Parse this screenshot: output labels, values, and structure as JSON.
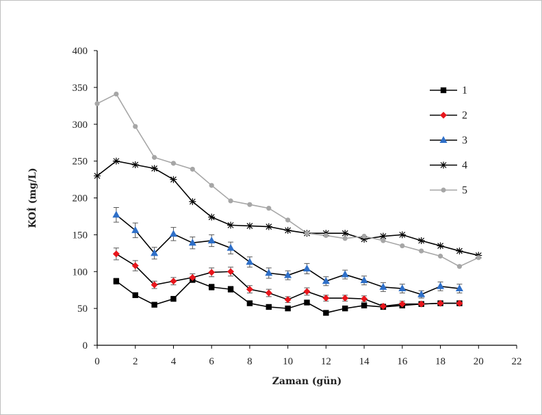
{
  "chart_data": {
    "type": "line",
    "title": "",
    "xlabel": "Zaman (gün)",
    "ylabel": "KOİ (mg/L)",
    "xlim": [
      0,
      22
    ],
    "ylim": [
      0,
      400
    ],
    "xticks": [
      0,
      2,
      4,
      6,
      8,
      10,
      12,
      14,
      16,
      18,
      20,
      22
    ],
    "yticks": [
      0,
      50,
      100,
      150,
      200,
      250,
      300,
      350,
      400
    ],
    "grid": false,
    "legend_position": "right",
    "series": [
      {
        "name": "1",
        "color": "#000000",
        "marker": "square",
        "x": [
          1,
          2,
          3,
          4,
          5,
          6,
          7,
          8,
          9,
          10,
          11,
          12,
          13,
          14,
          15,
          16,
          17,
          18,
          19
        ],
        "y": [
          87,
          68,
          55,
          63,
          89,
          79,
          76,
          57,
          52,
          50,
          58,
          44,
          50,
          54,
          52,
          54,
          56,
          57,
          57
        ],
        "error": [
          4,
          3,
          3,
          3,
          4,
          4,
          4,
          3,
          3,
          3,
          3,
          3,
          3,
          3,
          3,
          3,
          3,
          3,
          3
        ]
      },
      {
        "name": "2",
        "color": "#e8161c",
        "marker": "diamond",
        "x": [
          1,
          2,
          3,
          4,
          5,
          6,
          7,
          8,
          9,
          10,
          11,
          12,
          13,
          14,
          15,
          16,
          17,
          18,
          19
        ],
        "y": [
          124,
          108,
          82,
          87,
          92,
          99,
          100,
          76,
          71,
          62,
          73,
          64,
          64,
          63,
          53,
          56,
          56,
          57,
          57
        ],
        "error": [
          8,
          7,
          5,
          5,
          5,
          6,
          6,
          5,
          5,
          4,
          5,
          4,
          4,
          4,
          3,
          4,
          3,
          3,
          3
        ]
      },
      {
        "name": "3",
        "color": "#2e6fc8",
        "marker": "triangle",
        "x": [
          1,
          2,
          3,
          4,
          5,
          6,
          7,
          8,
          9,
          10,
          11,
          12,
          13,
          14,
          15,
          16,
          17,
          18,
          19
        ],
        "y": [
          177,
          156,
          125,
          151,
          139,
          142,
          132,
          113,
          98,
          95,
          104,
          87,
          96,
          88,
          79,
          77,
          69,
          80,
          77
        ],
        "error": [
          10,
          10,
          8,
          9,
          8,
          8,
          8,
          7,
          7,
          6,
          7,
          6,
          6,
          6,
          6,
          6,
          5,
          6,
          6
        ]
      },
      {
        "name": "4",
        "color": "#000000",
        "marker": "star",
        "x": [
          0,
          1,
          2,
          3,
          4,
          5,
          6,
          7,
          8,
          9,
          10,
          11,
          12,
          13,
          14,
          15,
          16,
          17,
          18,
          19,
          20
        ],
        "y": [
          230,
          250,
          245,
          240,
          225,
          195,
          174,
          163,
          162,
          161,
          156,
          152,
          152,
          152,
          144,
          148,
          150,
          142,
          135,
          128,
          122
        ]
      },
      {
        "name": "5",
        "color": "#a6a6a6",
        "marker": "circle",
        "x": [
          0,
          1,
          2,
          3,
          4,
          5,
          6,
          7,
          8,
          9,
          10,
          11,
          12,
          13,
          14,
          15,
          16,
          17,
          18,
          19,
          20
        ],
        "y": [
          328,
          341,
          297,
          255,
          247,
          239,
          217,
          196,
          191,
          186,
          170,
          152,
          149,
          145,
          148,
          142,
          135,
          128,
          121,
          107,
          119
        ]
      }
    ]
  }
}
